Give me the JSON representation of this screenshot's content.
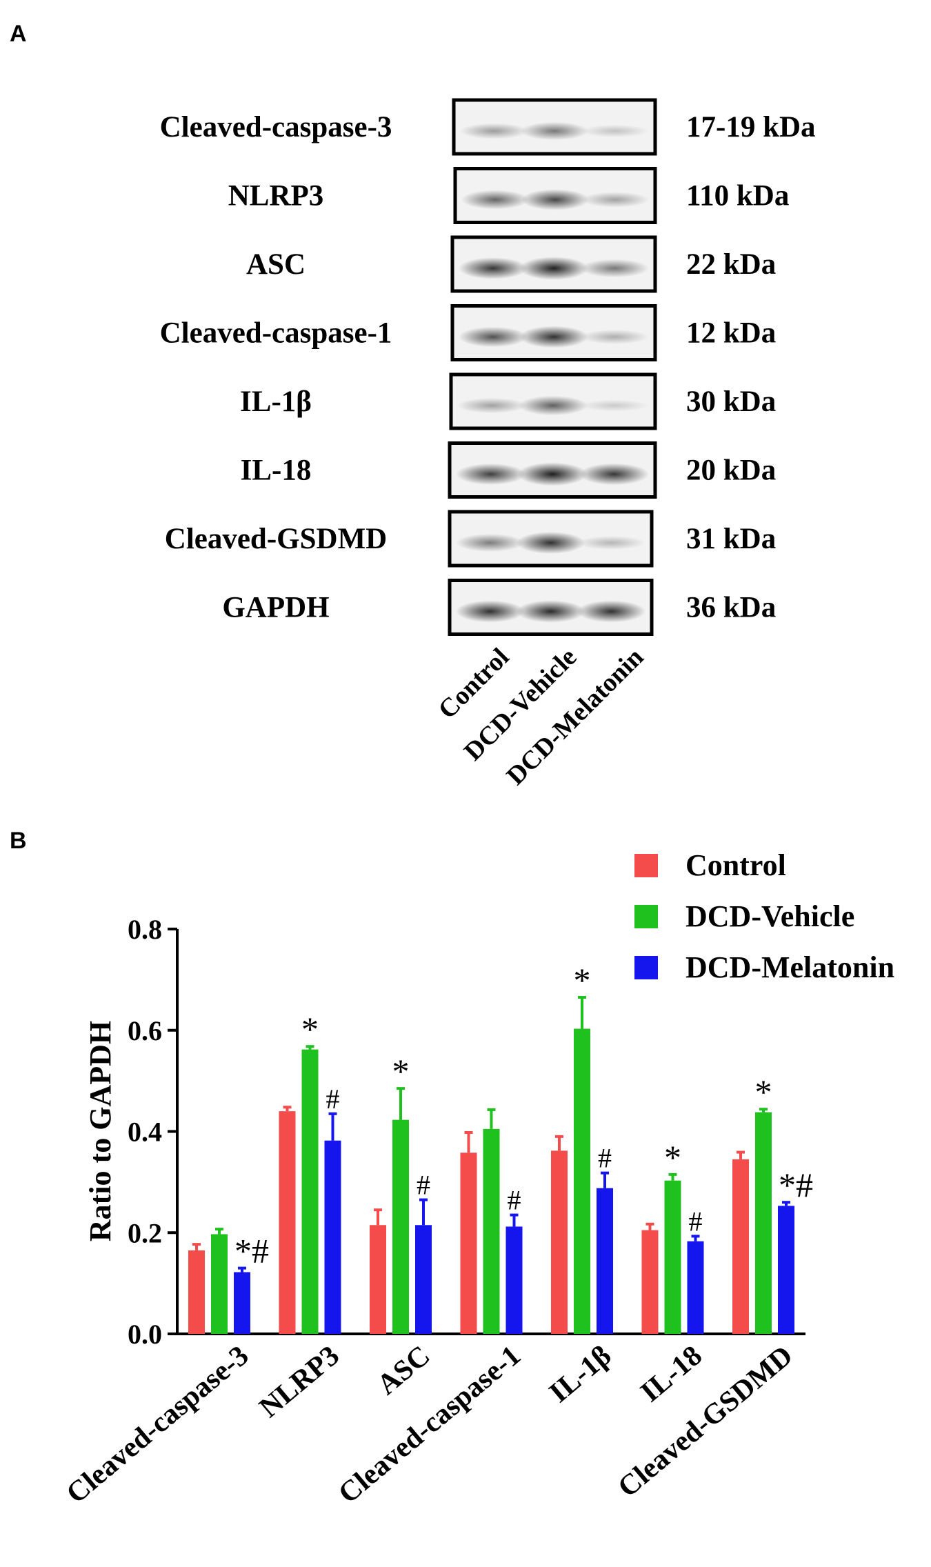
{
  "panel_a": {
    "letter": "A",
    "blots": [
      {
        "protein": "Cleaved-caspase-3",
        "size": "17-19 kDa",
        "bands": [
          0.45,
          0.62,
          0.22
        ]
      },
      {
        "protein": "NLRP3",
        "size": "110 kDa",
        "bands": [
          0.7,
          0.82,
          0.42
        ]
      },
      {
        "protein": "ASC",
        "size": "22 kDa",
        "bands": [
          0.88,
          0.98,
          0.62
        ]
      },
      {
        "protein": "Cleaved-caspase-1",
        "size": "12 kDa",
        "bands": [
          0.78,
          0.9,
          0.35
        ]
      },
      {
        "protein": "IL-1β",
        "size": "30 kDa",
        "bands": [
          0.42,
          0.72,
          0.16
        ]
      },
      {
        "protein": "IL-18",
        "size": "20 kDa",
        "bands": [
          0.85,
          1.0,
          0.88
        ]
      },
      {
        "protein": "Cleaved-GSDMD",
        "size": "31 kDa",
        "bands": [
          0.6,
          0.9,
          0.3
        ]
      },
      {
        "protein": "GAPDH",
        "size": "36 kDa",
        "bands": [
          0.9,
          0.92,
          0.9
        ]
      }
    ],
    "lanes": [
      "Control",
      "DCD-Vehicle",
      "DCD-Melatonin"
    ]
  },
  "chart_data": {
    "panel_letter": "B",
    "type": "bar",
    "categories": [
      "Cleaved-caspase-3",
      "NLRP3",
      "ASC",
      "Cleaved-caspase-1",
      "IL-1β",
      "IL-18",
      "Cleaved-GSDMD"
    ],
    "series": [
      {
        "name": "Control",
        "color": "#f44b4b",
        "values": [
          0.165,
          0.44,
          0.215,
          0.358,
          0.362,
          0.205,
          0.345
        ],
        "errors": [
          0.012,
          0.008,
          0.03,
          0.04,
          0.028,
          0.012,
          0.014
        ],
        "marks": [
          "",
          "",
          "",
          "",
          "",
          "",
          ""
        ]
      },
      {
        "name": "DCD-Vehicle",
        "color": "#1fc11f",
        "values": [
          0.197,
          0.562,
          0.423,
          0.405,
          0.603,
          0.303,
          0.438
        ],
        "errors": [
          0.01,
          0.006,
          0.062,
          0.038,
          0.062,
          0.012,
          0.006
        ],
        "marks": [
          "",
          "*",
          "*",
          "",
          "*",
          "*",
          "*"
        ]
      },
      {
        "name": "DCD-Melatonin",
        "color": "#1515ee",
        "values": [
          0.122,
          0.382,
          0.215,
          0.212,
          0.288,
          0.183,
          0.253
        ],
        "errors": [
          0.008,
          0.053,
          0.05,
          0.023,
          0.03,
          0.01,
          0.007
        ],
        "marks": [
          "*#",
          "#",
          "#",
          "#",
          "#",
          "#",
          "*#"
        ]
      }
    ],
    "ylabel": "Ratio to GAPDH",
    "ylim": [
      0,
      0.8
    ],
    "yticks": [
      "0.0",
      "0.2",
      "0.4",
      "0.6",
      "0.8"
    ],
    "legend_position": "top-right",
    "grid": false
  }
}
